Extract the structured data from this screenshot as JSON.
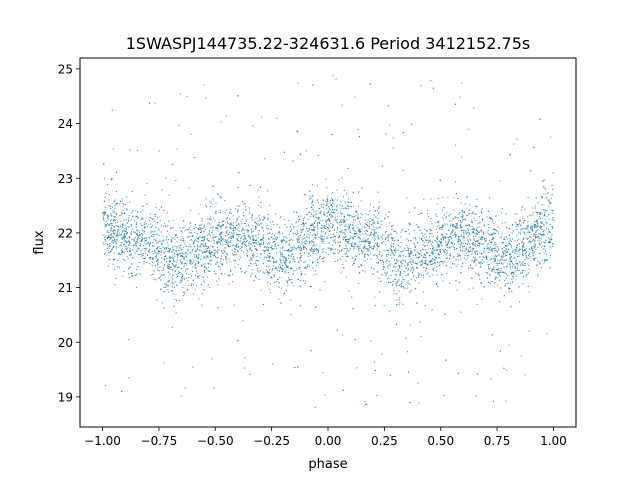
{
  "chart_data": {
    "type": "scatter",
    "title": "1SWASPJ144735.22-324631.6 Period 3412152.75s",
    "xlabel": "phase",
    "ylabel": "flux",
    "xlim": [
      -1.1,
      1.1
    ],
    "ylim": [
      18.45,
      25.2
    ],
    "x_ticks": [
      -1.0,
      -0.75,
      -0.5,
      -0.25,
      0.0,
      0.25,
      0.5,
      0.75,
      1.0
    ],
    "x_tick_labels": [
      "−1.00",
      "−0.75",
      "−0.50",
      "−0.25",
      "0.00",
      "0.25",
      "0.50",
      "0.75",
      "1.00"
    ],
    "y_ticks": [
      19,
      20,
      21,
      22,
      23,
      24,
      25
    ],
    "y_tick_labels": [
      "19",
      "20",
      "21",
      "22",
      "23",
      "24",
      "25"
    ],
    "grid": false,
    "legend": "none",
    "marker_color": "#1f77b4",
    "series": [
      {
        "phase_profile": {
          "x": [
            -1.0,
            -0.9,
            -0.8,
            -0.75,
            -0.7,
            -0.6,
            -0.5,
            -0.4,
            -0.3,
            -0.2,
            -0.1,
            0.0,
            0.1,
            0.2,
            0.25,
            0.3,
            0.4,
            0.5,
            0.6,
            0.7,
            0.8,
            0.9,
            1.0
          ],
          "y": [
            22.1,
            21.95,
            21.9,
            21.7,
            21.45,
            21.6,
            21.8,
            21.95,
            21.75,
            21.5,
            21.9,
            22.2,
            21.95,
            21.9,
            21.7,
            21.45,
            21.6,
            21.8,
            21.95,
            21.75,
            21.5,
            21.9,
            22.2
          ]
        },
        "scatter_width": 0.55,
        "outlier_range": [
          18.8,
          24.9
        ]
      }
    ]
  }
}
